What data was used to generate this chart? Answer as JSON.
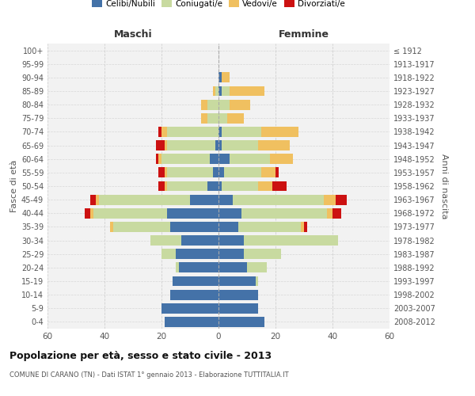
{
  "age_groups": [
    "0-4",
    "5-9",
    "10-14",
    "15-19",
    "20-24",
    "25-29",
    "30-34",
    "35-39",
    "40-44",
    "45-49",
    "50-54",
    "55-59",
    "60-64",
    "65-69",
    "70-74",
    "75-79",
    "80-84",
    "85-89",
    "90-94",
    "95-99",
    "100+"
  ],
  "birth_years": [
    "2008-2012",
    "2003-2007",
    "1998-2002",
    "1993-1997",
    "1988-1992",
    "1983-1987",
    "1978-1982",
    "1973-1977",
    "1968-1972",
    "1963-1967",
    "1958-1962",
    "1953-1957",
    "1948-1952",
    "1943-1947",
    "1938-1942",
    "1933-1937",
    "1928-1932",
    "1923-1927",
    "1918-1922",
    "1913-1917",
    "≤ 1912"
  ],
  "maschi_celibe": [
    19,
    20,
    17,
    16,
    14,
    15,
    13,
    17,
    18,
    10,
    4,
    2,
    3,
    1,
    0,
    0,
    0,
    0,
    0,
    0,
    0
  ],
  "maschi_coniugato": [
    0,
    0,
    0,
    0,
    1,
    5,
    11,
    20,
    26,
    32,
    14,
    16,
    17,
    17,
    18,
    4,
    4,
    1,
    0,
    0,
    0
  ],
  "maschi_vedovo": [
    0,
    0,
    0,
    0,
    0,
    0,
    0,
    1,
    1,
    1,
    1,
    1,
    1,
    1,
    2,
    2,
    2,
    1,
    0,
    0,
    0
  ],
  "maschi_divorziato": [
    0,
    0,
    0,
    0,
    0,
    0,
    0,
    0,
    2,
    2,
    2,
    2,
    1,
    3,
    1,
    0,
    0,
    0,
    0,
    0,
    0
  ],
  "femmine_celibe": [
    16,
    14,
    14,
    13,
    10,
    9,
    9,
    7,
    8,
    5,
    1,
    2,
    4,
    1,
    1,
    0,
    0,
    1,
    1,
    0,
    0
  ],
  "femmine_coniugata": [
    0,
    0,
    0,
    1,
    7,
    13,
    33,
    22,
    30,
    32,
    13,
    13,
    14,
    13,
    14,
    3,
    4,
    3,
    0,
    0,
    0
  ],
  "femmine_vedova": [
    0,
    0,
    0,
    0,
    0,
    0,
    0,
    1,
    2,
    4,
    5,
    5,
    8,
    11,
    13,
    6,
    7,
    12,
    3,
    0,
    0
  ],
  "femmine_divorziata": [
    0,
    0,
    0,
    0,
    0,
    0,
    0,
    1,
    3,
    4,
    5,
    1,
    0,
    0,
    0,
    0,
    0,
    0,
    0,
    0,
    0
  ],
  "color_celibe": "#4472a8",
  "color_coniugato": "#c8daa0",
  "color_vedovo": "#f0c060",
  "color_divorziato": "#cc1111",
  "color_background": "#f2f2f2",
  "color_grid": "#cccccc",
  "title": "Popolazione per età, sesso e stato civile - 2013",
  "subtitle": "COMUNE DI CARANO (TN) - Dati ISTAT 1° gennaio 2013 - Elaborazione TUTTITALIA.IT",
  "xlabel_left": "Maschi",
  "xlabel_right": "Femmine",
  "ylabel_left": "Fasce di età",
  "ylabel_right": "Anni di nascita",
  "legend_labels": [
    "Celibi/Nubili",
    "Coniugati/e",
    "Vedovi/e",
    "Divorziati/e"
  ],
  "xlim": 60
}
